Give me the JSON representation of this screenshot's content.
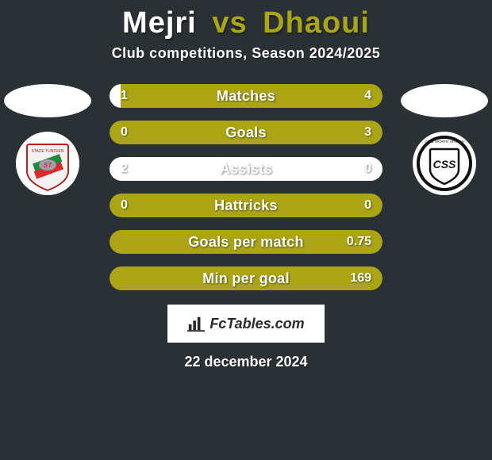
{
  "background_color": "#2a3135",
  "title": {
    "player1": "Mejri",
    "vs": "vs",
    "player2": "Dhaoui",
    "color_player1": "#ffffff",
    "color_vs": "#aba516",
    "color_player2": "#aba516",
    "fontsize": 38
  },
  "subtitle": {
    "text": "Club competitions, Season 2024/2025",
    "color": "#ffffff",
    "fontsize": 18
  },
  "bar_style": {
    "height": 30,
    "gap": 16,
    "radius": 15,
    "label_fontsize": 18,
    "value_fontsize": 16,
    "text_color": "#ffffff",
    "left_color": "#ffffff",
    "right_color": "#aba516",
    "background_color": "#aba516"
  },
  "stats": [
    {
      "label": "Matches",
      "left_val": "1",
      "right_val": "4",
      "left_pct": 4,
      "right_pct": 96
    },
    {
      "label": "Goals",
      "left_val": "0",
      "right_val": "3",
      "left_pct": 0,
      "right_pct": 100
    },
    {
      "label": "Assists",
      "left_val": "2",
      "right_val": "0",
      "left_pct": 100,
      "right_pct": 0
    },
    {
      "label": "Hattricks",
      "left_val": "0",
      "right_val": "0",
      "left_pct": 0,
      "right_pct": 100
    },
    {
      "label": "Goals per match",
      "left_val": "",
      "right_val": "0.75",
      "left_pct": 0,
      "right_pct": 100
    },
    {
      "label": "Min per goal",
      "left_val": "",
      "right_val": "169",
      "left_pct": 0,
      "right_pct": 100
    }
  ],
  "players": {
    "left": {
      "photo_placeholder": true,
      "club_name": "Stade Tunisien",
      "club_badge_colors": {
        "bg": "#ffffff",
        "accent1": "#1f8a3b",
        "accent2": "#d92b2b",
        "accent3": "#9aa0a6",
        "text": "#b02424"
      }
    },
    "right": {
      "photo_placeholder": true,
      "club_name": "CSS",
      "club_badge_colors": {
        "bg": "#ffffff",
        "ring": "#111111",
        "inner": "#ffffff",
        "text": "#111111"
      }
    }
  },
  "watermark": {
    "icon": "bar-chart-icon",
    "text": "FcTables.com",
    "bg": "#ffffff",
    "text_color": "#2a2a2a",
    "fontsize": 18
  },
  "date": {
    "text": "22 december 2024",
    "color": "#ffffff",
    "fontsize": 18
  }
}
